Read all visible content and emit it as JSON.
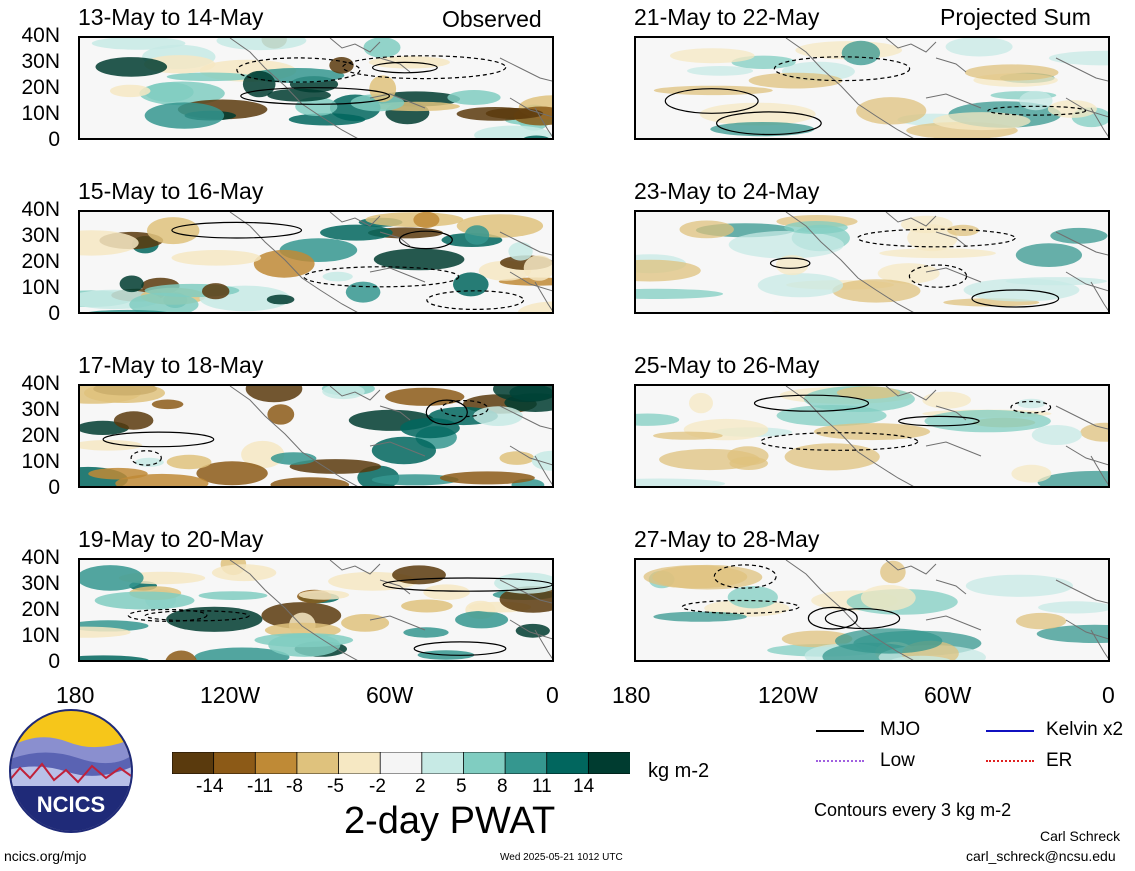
{
  "header": {
    "observed_label": "Observed",
    "projected_label": "Projected Sum"
  },
  "panels_left": [
    {
      "title": "13-May to 14-May"
    },
    {
      "title": "15-May to 16-May"
    },
    {
      "title": "17-May to 18-May"
    },
    {
      "title": "19-May to 20-May"
    }
  ],
  "panels_right": [
    {
      "title": "21-May to 22-May"
    },
    {
      "title": "23-May to 24-May"
    },
    {
      "title": "25-May to 26-May"
    },
    {
      "title": "27-May to 28-May"
    }
  ],
  "axes": {
    "y_ticks": [
      "40N",
      "30N",
      "20N",
      "10N",
      "0"
    ],
    "x_ticks": [
      "180",
      "120W",
      "60W",
      "0"
    ]
  },
  "colorbar": {
    "tick_labels": [
      "-14",
      "-11",
      "-8",
      "-5",
      "-2",
      "2",
      "5",
      "8",
      "11",
      "14"
    ],
    "colors": [
      "#5a3a0d",
      "#8c5a17",
      "#bf8a36",
      "#dfc27d",
      "#f6e8c3",
      "#f5f5f5",
      "#c7eae5",
      "#80cdc1",
      "#35978f",
      "#01665e",
      "#003c30"
    ],
    "units": "kg m-2",
    "title": "2-day PWAT"
  },
  "legend": {
    "items": [
      {
        "label": "MJO",
        "color": "#000000"
      },
      {
        "label": "Kelvin x2",
        "color": "#1010c0"
      },
      {
        "label": "Low",
        "color": "#a060e0"
      },
      {
        "label": "ER",
        "color": "#e02020"
      }
    ],
    "contour_note": "Contours every 3 kg m-2"
  },
  "footer": {
    "logo_text": "NCICS",
    "website": "ncics.org/mjo",
    "timestamp": "Wed 2025-05-21 1012 UTC",
    "author": "Carl Schreck",
    "email": "carl_schreck@ncsu.edu"
  }
}
